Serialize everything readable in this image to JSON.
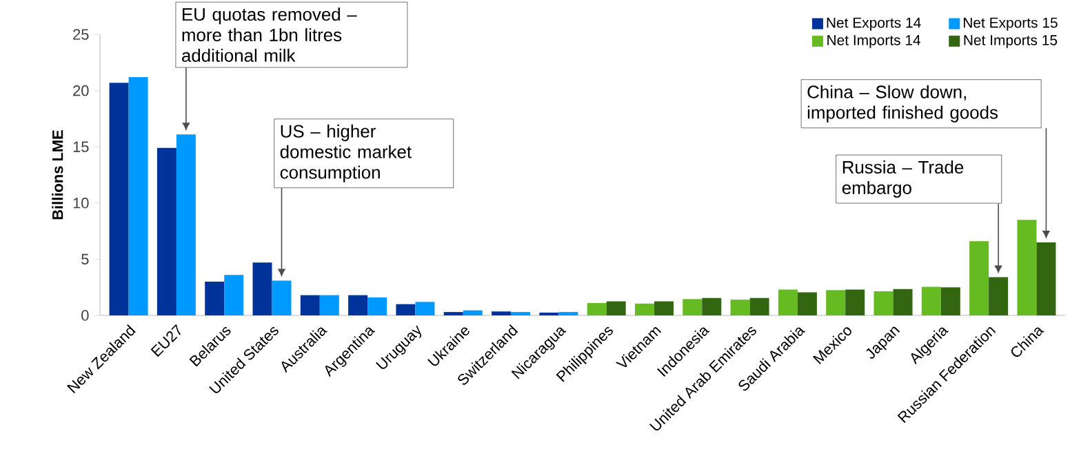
{
  "chart_data": {
    "type": "bar",
    "ylabel": "Billions LME",
    "categories": [
      "New Zealand",
      "EU27",
      "Belarus",
      "United States",
      "Australia",
      "Argentina",
      "Uruguay",
      "Ukraine",
      "Switzerland",
      "Nicaragua",
      "Philippines",
      "Vietnam",
      "Indonesia",
      "United Arab Emirates",
      "Saudi Arabia",
      "Mexico",
      "Japan",
      "Algeria",
      "Russian Federation",
      "China"
    ],
    "series": [
      {
        "name": "Net Exports 14",
        "color": "#003399",
        "values": [
          20.7,
          14.9,
          3.0,
          4.7,
          1.8,
          1.8,
          1.0,
          0.3,
          0.35,
          0.25,
          null,
          null,
          null,
          null,
          null,
          null,
          null,
          null,
          null,
          null
        ]
      },
      {
        "name": "Net Exports 15",
        "color": "#0099ff",
        "values": [
          21.2,
          16.1,
          3.6,
          3.1,
          1.8,
          1.6,
          1.2,
          0.45,
          0.3,
          0.3,
          null,
          null,
          null,
          null,
          null,
          null,
          null,
          null,
          null,
          null
        ]
      },
      {
        "name": "Net Imports 14",
        "color": "#66bb22",
        "values": [
          null,
          null,
          null,
          null,
          null,
          null,
          null,
          null,
          null,
          null,
          1.1,
          1.05,
          1.45,
          1.4,
          2.3,
          2.25,
          2.15,
          2.55,
          6.6,
          8.5
        ]
      },
      {
        "name": "Net Imports 15",
        "color": "#336611",
        "values": [
          null,
          null,
          null,
          null,
          null,
          null,
          null,
          null,
          null,
          null,
          1.25,
          1.25,
          1.55,
          1.55,
          2.05,
          2.3,
          2.35,
          2.5,
          3.4,
          6.5
        ]
      }
    ],
    "ylim": [
      0,
      25
    ],
    "yticks": [
      0,
      5,
      10,
      15,
      20,
      25
    ],
    "grid": false,
    "legend": "top right",
    "annotations": [
      "EU quotas removed – more than 1bn litres additional milk",
      "US – higher domestic market consumption",
      "Russia – Trade embargo",
      "China – Slow down, imported finished goods"
    ]
  }
}
